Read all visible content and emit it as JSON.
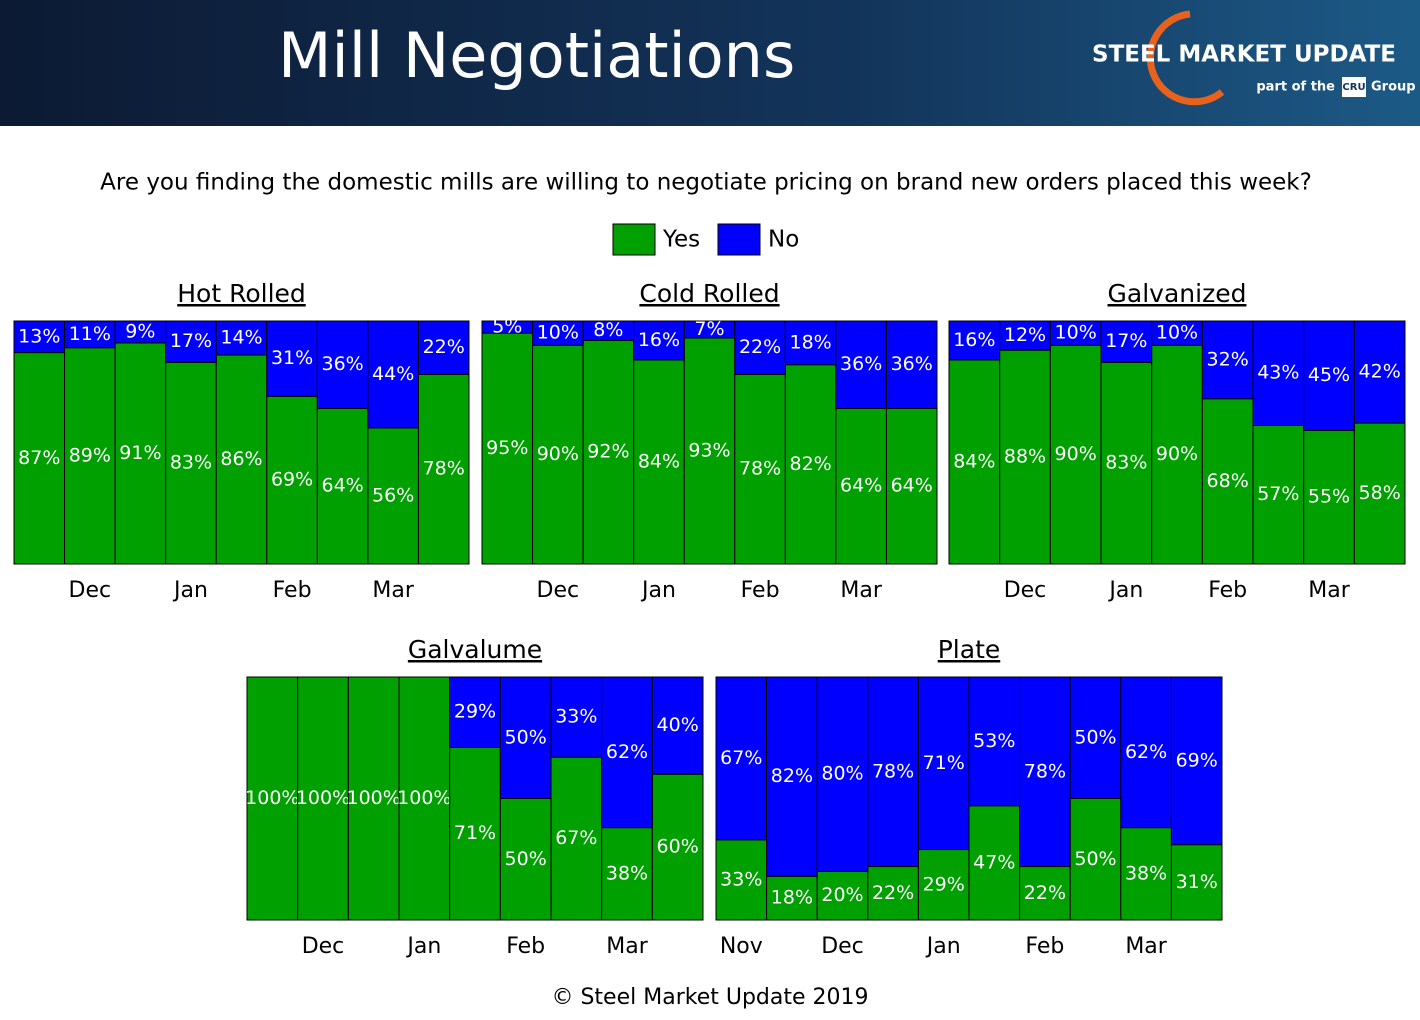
{
  "header": {
    "title": "Mill Negotiations",
    "brand": "STEEL MARKET UPDATE",
    "tagline": "part of the",
    "tagline_mark": "CRU",
    "tagline_end": "Group"
  },
  "subtitle": "Are you finding the domestic mills are willing to negotiate pricing on brand new orders placed this week?",
  "legend": [
    {
      "name": "Yes",
      "color": "#00a000"
    },
    {
      "name": "No",
      "color": "#0000ff"
    }
  ],
  "footer": "© Steel Market Update 2019",
  "chart_data": [
    {
      "type": "stacked_bar",
      "title": "Hot Rolled",
      "ylim": [
        0,
        100
      ],
      "categories": [
        null,
        "Dec",
        null,
        "Jan",
        null,
        "Feb",
        null,
        "Mar",
        null
      ],
      "series": [
        {
          "values": [
            87,
            89,
            91,
            83,
            86,
            69,
            64,
            56,
            78
          ],
          "value_labels": [
            "87%",
            "89%",
            "91%",
            "83%",
            "86%",
            "69%",
            "64%",
            "56%",
            "78%"
          ]
        },
        {
          "values": [
            13,
            11,
            9,
            17,
            14,
            31,
            36,
            44,
            22
          ],
          "value_labels": [
            "13%",
            "11%",
            "9%",
            "17%",
            "14%",
            "31%",
            "36%",
            "44%",
            "22%"
          ]
        }
      ]
    },
    {
      "type": "stacked_bar",
      "title": "Cold Rolled",
      "ylim": [
        0,
        100
      ],
      "categories": [
        null,
        "Dec",
        null,
        "Jan",
        null,
        "Feb",
        null,
        "Mar",
        null
      ],
      "series": [
        {
          "values": [
            95,
            90,
            92,
            84,
            93,
            78,
            82,
            64,
            64
          ],
          "value_labels": [
            "95%",
            "90%",
            "92%",
            "84%",
            "93%",
            "78%",
            "82%",
            "64%",
            "64%"
          ]
        },
        {
          "values": [
            5,
            10,
            8,
            16,
            7,
            22,
            18,
            36,
            36
          ],
          "value_labels": [
            "5%",
            "10%",
            "8%",
            "16%",
            "7%",
            "22%",
            "18%",
            "36%",
            "36%"
          ]
        }
      ]
    },
    {
      "type": "stacked_bar",
      "title": "Galvanized",
      "ylim": [
        0,
        100
      ],
      "categories": [
        null,
        "Dec",
        null,
        "Jan",
        null,
        "Feb",
        null,
        "Mar",
        null
      ],
      "series": [
        {
          "values": [
            84,
            88,
            90,
            83,
            90,
            68,
            57,
            55,
            58
          ],
          "value_labels": [
            "84%",
            "88%",
            "90%",
            "83%",
            "90%",
            "68%",
            "57%",
            "55%",
            "58%"
          ]
        },
        {
          "values": [
            16,
            12,
            10,
            17,
            10,
            32,
            43,
            45,
            42
          ],
          "value_labels": [
            "16%",
            "12%",
            "10%",
            "17%",
            "10%",
            "32%",
            "43%",
            "45%",
            "42%"
          ]
        }
      ]
    },
    {
      "type": "stacked_bar",
      "title": "Galvalume",
      "ylim": [
        0,
        100
      ],
      "categories": [
        null,
        "Dec",
        null,
        "Jan",
        null,
        "Feb",
        null,
        "Mar",
        null
      ],
      "series": [
        {
          "values": [
            100,
            100,
            100,
            100,
            71,
            50,
            67,
            38,
            60
          ],
          "value_labels": [
            "100%",
            "100%",
            "100%",
            "100%",
            "71%",
            "50%",
            "67%",
            "38%",
            "60%"
          ]
        },
        {
          "values": [
            0,
            0,
            0,
            0,
            29,
            50,
            33,
            62,
            40
          ],
          "value_labels": [
            null,
            null,
            null,
            null,
            "29%",
            "50%",
            "33%",
            "62%",
            "40%"
          ]
        }
      ]
    },
    {
      "type": "stacked_bar",
      "title": "Plate",
      "ylim": [
        0,
        100
      ],
      "categories": [
        "Nov",
        null,
        "Dec",
        null,
        "Jan",
        null,
        "Feb",
        null,
        "Mar",
        null
      ],
      "series": [
        {
          "values": [
            33,
            18,
            20,
            22,
            29,
            47,
            22,
            50,
            38,
            31
          ],
          "value_labels": [
            "33%",
            "18%",
            "20%",
            "22%",
            "29%",
            "47%",
            "22%",
            "50%",
            "38%",
            "31%"
          ]
        },
        {
          "values": [
            67,
            82,
            80,
            78,
            71,
            53,
            78,
            50,
            62,
            69
          ],
          "value_labels": [
            "67%",
            "82%",
            "80%",
            "78%",
            "71%",
            "53%",
            "78%",
            "50%",
            "62%",
            "69%"
          ]
        }
      ]
    }
  ]
}
